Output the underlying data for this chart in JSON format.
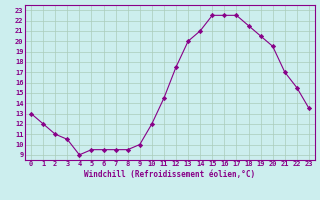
{
  "x": [
    0,
    1,
    2,
    3,
    4,
    5,
    6,
    7,
    8,
    9,
    10,
    11,
    12,
    13,
    14,
    15,
    16,
    17,
    18,
    19,
    20,
    21,
    22,
    23
  ],
  "y": [
    13.0,
    12.0,
    11.0,
    10.5,
    9.0,
    9.5,
    9.5,
    9.5,
    9.5,
    10.0,
    12.0,
    14.5,
    17.5,
    20.0,
    21.0,
    22.5,
    22.5,
    22.5,
    21.5,
    20.5,
    19.5,
    17.0,
    15.5,
    13.5
  ],
  "line_color": "#880088",
  "marker": "D",
  "marker_size": 2.2,
  "bg_color": "#cceeee",
  "grid_color": "#aaccbb",
  "xlabel": "Windchill (Refroidissement éolien,°C)",
  "xlabel_color": "#880088",
  "tick_color": "#880088",
  "ylim": [
    9,
    23
  ],
  "xlim": [
    -0.5,
    23.5
  ],
  "yticks": [
    9,
    10,
    11,
    12,
    13,
    14,
    15,
    16,
    17,
    18,
    19,
    20,
    21,
    22,
    23
  ],
  "xticks": [
    0,
    1,
    2,
    3,
    4,
    5,
    6,
    7,
    8,
    9,
    10,
    11,
    12,
    13,
    14,
    15,
    16,
    17,
    18,
    19,
    20,
    21,
    22,
    23
  ]
}
